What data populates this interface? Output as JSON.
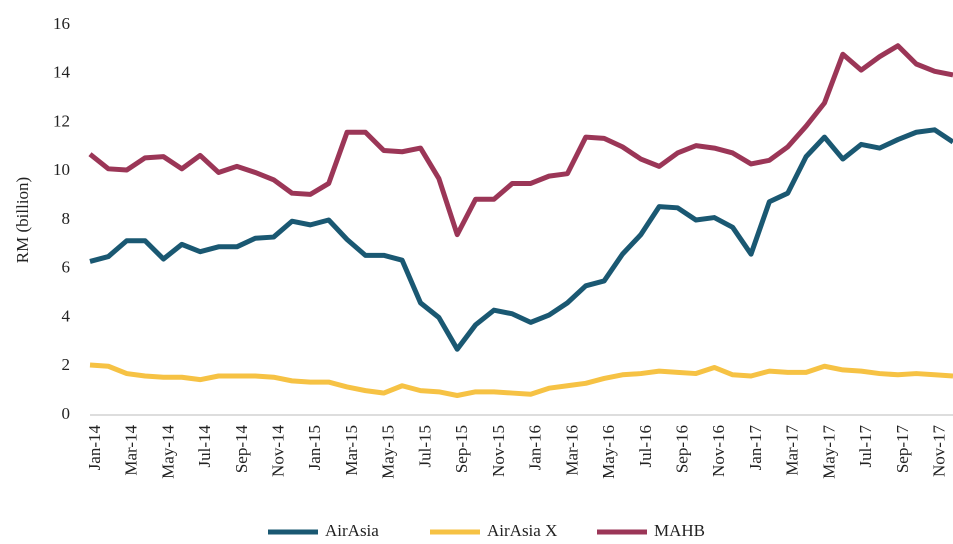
{
  "chart_data": {
    "type": "line",
    "y_label": "RM (billion)",
    "categories": [
      "Jan-14",
      null,
      "Mar-14",
      null,
      "May-14",
      null,
      "Jul-14",
      null,
      "Sep-14",
      null,
      "Nov-14",
      null,
      "Jan-15",
      null,
      "Mar-15",
      null,
      "May-15",
      null,
      "Jul-15",
      null,
      "Sep-15",
      null,
      "Nov-15",
      null,
      "Jan-16",
      null,
      "Mar-16",
      null,
      "May-16",
      null,
      "Jul-16",
      null,
      "Sep-16",
      null,
      "Nov-16",
      null,
      "Jan-17",
      null,
      "Mar-17",
      null,
      "May-17",
      null,
      "Jul-17",
      null,
      "Sep-17",
      null,
      "Nov-17",
      null
    ],
    "series": [
      {
        "name": "AirAsia",
        "color": "#1a5872",
        "values": [
          6.3,
          6.5,
          7.15,
          7.15,
          6.4,
          7.0,
          6.7,
          6.9,
          6.9,
          7.25,
          7.3,
          7.95,
          7.8,
          8.0,
          7.2,
          6.55,
          6.55,
          6.35,
          4.6,
          4.0,
          2.7,
          3.7,
          4.3,
          4.15,
          3.8,
          4.1,
          4.6,
          5.3,
          5.5,
          6.6,
          7.4,
          8.55,
          8.5,
          8.0,
          8.1,
          7.7,
          6.6,
          8.75,
          9.1,
          10.6,
          11.4,
          10.5,
          11.1,
          10.95,
          11.3,
          11.6,
          11.7,
          11.2
        ]
      },
      {
        "name": "AirAsia X",
        "color": "#f6c244",
        "values": [
          2.05,
          2.0,
          1.7,
          1.6,
          1.55,
          1.55,
          1.45,
          1.6,
          1.6,
          1.6,
          1.55,
          1.4,
          1.35,
          1.35,
          1.15,
          1.0,
          0.9,
          1.2,
          1.0,
          0.95,
          0.8,
          0.95,
          0.95,
          0.9,
          0.85,
          1.1,
          1.2,
          1.3,
          1.5,
          1.65,
          1.7,
          1.8,
          1.75,
          1.7,
          1.95,
          1.65,
          1.6,
          1.8,
          1.75,
          1.75,
          2.0,
          1.85,
          1.8,
          1.7,
          1.65,
          1.7,
          1.65,
          1.6
        ]
      },
      {
        "name": "MAHB",
        "color": "#9b3657",
        "values": [
          10.7,
          10.1,
          10.05,
          10.55,
          10.6,
          10.1,
          10.65,
          9.95,
          10.2,
          9.95,
          9.65,
          9.1,
          9.05,
          9.5,
          11.6,
          11.6,
          10.85,
          10.8,
          10.95,
          9.7,
          7.4,
          8.85,
          8.85,
          9.5,
          9.5,
          9.8,
          9.9,
          11.4,
          11.35,
          11.0,
          10.5,
          10.2,
          10.75,
          11.05,
          10.95,
          10.75,
          10.3,
          10.45,
          11.0,
          11.85,
          12.8,
          14.8,
          14.15,
          14.7,
          15.15,
          14.4,
          14.1,
          13.95
        ]
      }
    ],
    "ylim": [
      0,
      16
    ],
    "yticks": [
      0,
      2,
      4,
      6,
      8,
      10,
      12,
      14,
      16
    ],
    "grid": false,
    "legend": "bottom"
  }
}
